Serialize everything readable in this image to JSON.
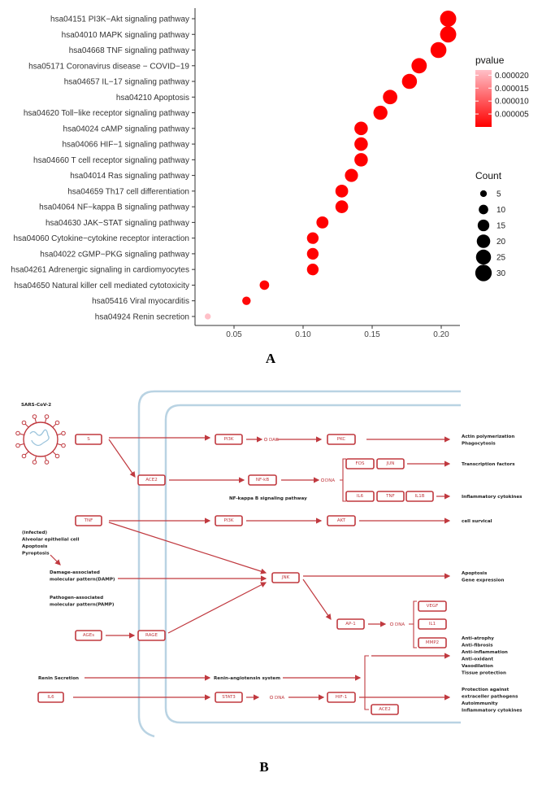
{
  "chart_data": {
    "type": "scatter",
    "subtype": "dot-plot",
    "panel_label": "A",
    "xlim": [
      0.025,
      0.21
    ],
    "xticks": [
      "0.05",
      "0.10",
      "0.15",
      "0.20"
    ],
    "xtick_values": [
      0.05,
      0.1,
      0.15,
      0.2
    ],
    "grid": false,
    "categories": [
      "hsa04151 PI3K−Akt signaling pathway",
      "hsa04010 MAPK signaling pathway",
      "hsa04668 TNF signaling pathway",
      "hsa05171 Coronavirus disease − COVID−19",
      "hsa04657 IL−17 signaling pathway",
      "hsa04210 Apoptosis",
      "hsa04620 Toll−like receptor signaling pathway",
      "hsa04024 cAMP signaling pathway",
      "hsa04066 HIF−1 signaling pathway",
      "hsa04660 T cell receptor signaling pathway",
      "hsa04014 Ras signaling pathway",
      "hsa04659 Th17 cell differentiation",
      "hsa04064 NF−kappa B signaling pathway",
      "hsa04630 JAK−STAT signaling pathway",
      "hsa04060 Cytokine−cytokine receptor interaction",
      "hsa04022 cGMP−PKG signaling pathway",
      "hsa04261 Adrenergic signaling in cardiomyocytes",
      "hsa04650 Natural killer cell mediated cytotoxicity",
      "hsa05416 Viral myocarditis",
      "hsa04924 Renin secretion"
    ],
    "x": [
      0.205,
      0.205,
      0.198,
      0.184,
      0.177,
      0.163,
      0.156,
      0.142,
      0.142,
      0.142,
      0.135,
      0.128,
      0.128,
      0.114,
      0.107,
      0.107,
      0.107,
      0.072,
      0.059,
      0.031
    ],
    "count": [
      29,
      29,
      28,
      26,
      25,
      23,
      22,
      20,
      20,
      20,
      19,
      18,
      18,
      16,
      15,
      15,
      15,
      10,
      8,
      4
    ],
    "pvalue": [
      1e-10,
      1e-10,
      1e-10,
      1e-10,
      1e-10,
      1e-10,
      1e-10,
      1e-09,
      1e-09,
      1e-09,
      1e-09,
      1e-09,
      1e-09,
      1e-08,
      1e-08,
      1e-08,
      1e-08,
      1e-07,
      1e-06,
      2.2e-05
    ],
    "color_legend": {
      "title": "pvalue",
      "labels": [
        "0.000020",
        "0.000015",
        "0.000010",
        "0.000005"
      ],
      "values": [
        2e-05,
        1.5e-05,
        1e-05,
        5e-06
      ],
      "range": [
        0,
        2.2e-05
      ],
      "low_color": "#ff0000",
      "high_color": "#ffc0c8"
    },
    "size_legend": {
      "title": "Count",
      "labels": [
        "5",
        "10",
        "15",
        "20",
        "25",
        "30"
      ],
      "values": [
        5,
        10,
        15,
        20,
        25,
        30
      ]
    },
    "legend_placement": "right"
  },
  "diagram": {
    "panel_label": "B",
    "colors": {
      "node": "#c0393f",
      "membrane": "#b9d3e3"
    },
    "virus_label": "SARS-CoV-2",
    "nodes": {
      "s": "S",
      "pi3k_1": "PI3K",
      "pkc": "PKC",
      "ace2_1": "ACE2",
      "nfkb": "NF-kB",
      "fos": "FOS",
      "jun": "JUN",
      "il6_a": "IL6",
      "tnf_a": "TNF",
      "il1b": "IL1B",
      "tnf": "TNF",
      "pi3k_2": "PI3K",
      "akt": "AKT",
      "jnk": "JNK",
      "ap1": "AP-1",
      "vegf": "VEGF",
      "il1": "IL1",
      "mmp2": "MMP2",
      "ages": "AGEs",
      "rage": "RAGE",
      "ace2_2": "ACE2",
      "il6": "IL6",
      "stat3": "STAT3",
      "hif1": "HIF-1"
    },
    "small_molecules": {
      "dag": "DAG",
      "dna_1": "DNA",
      "dna_2": "DNA",
      "dna_3": "DNA"
    },
    "texts": {
      "nfkb_pathway": "NF-kappa B signaling pathway",
      "infected": [
        "(infected)",
        "Alveolar epithelial cell",
        "Apoptosis",
        "Pyroptosis"
      ],
      "damp": [
        "Damage-associated",
        "molecular pattern(DAMP)"
      ],
      "pamp": [
        "Pathogen-associated",
        "molecular pattern(PAMP)"
      ],
      "renin_secretion": "Renin Secretion",
      "ras": "Renin-angiotensin system"
    },
    "outcomes": {
      "actin": [
        "Actin polymerization",
        "Phagocytosis"
      ],
      "transcription": "Transcription factors",
      "inflammatory": "Inflammatory cytokines",
      "survival": "cell survical",
      "apoptosis": [
        "Apoptosis",
        "Gene expression"
      ],
      "protective": [
        "Anti-atrophy",
        "Anti-fibrosis",
        "Anti-inflammation",
        "Anti-oxidant",
        "Vasodilation",
        "Tissue protection"
      ],
      "protection": [
        "Protection against",
        "extraceller pathogens",
        "Autoimmunity",
        "Inflammatory cytokines"
      ]
    }
  }
}
